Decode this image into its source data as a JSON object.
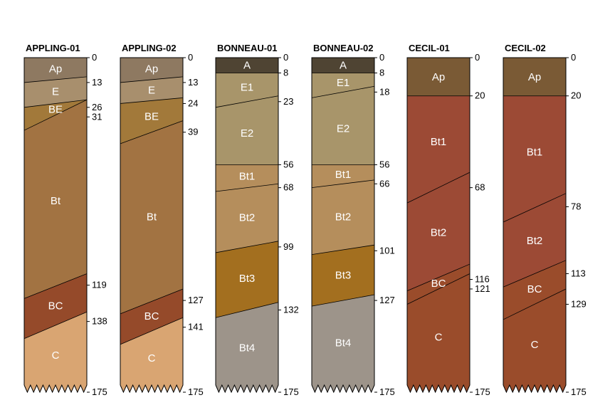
{
  "chart_data": {
    "type": "soil-profile-sketch",
    "depth_unit": "cm",
    "max_depth": 175,
    "bottom_depth_label": "175",
    "profiles": [
      {
        "name": "APPLING-01",
        "horizons": [
          {
            "name": "Ap",
            "top": 0,
            "bottom": 13,
            "color": "#8e7961",
            "label_color": "#ffffff",
            "bottom_right": 10
          },
          {
            "name": "E",
            "top": 13,
            "bottom": 26,
            "color": "#a88f6d",
            "label_color": "#ffffff",
            "bottom_right": 22
          },
          {
            "name": "BE",
            "top": 26,
            "bottom": 31,
            "color": "#a2793a",
            "label_color": "#ffffff",
            "bottom_left": 38,
            "bottom_right": 22
          },
          {
            "name": "Bt",
            "top": 31,
            "bottom": 119,
            "color": "#a27342",
            "label_color": "#ffffff",
            "bottom_left": 126,
            "bottom_right": 113
          },
          {
            "name": "BC",
            "top": 119,
            "bottom": 138,
            "color": "#954a2a",
            "label_color": "#ffffff",
            "bottom_left": 147,
            "bottom_right": 133
          },
          {
            "name": "C",
            "top": 138,
            "bottom": 175,
            "color": "#d9a572",
            "label_color": "#000000"
          }
        ],
        "depth_labels": [
          "0",
          "13",
          "26",
          "31",
          "119",
          "138",
          "175"
        ]
      },
      {
        "name": "APPLING-02",
        "horizons": [
          {
            "name": "Ap",
            "top": 0,
            "bottom": 13,
            "color": "#8e7961",
            "label_color": "#ffffff",
            "bottom_right": 10
          },
          {
            "name": "E",
            "top": 13,
            "bottom": 24,
            "color": "#a88f6d",
            "label_color": "#ffffff",
            "bottom_right": 21
          },
          {
            "name": "BE",
            "top": 24,
            "bottom": 39,
            "color": "#a2793a",
            "label_color": "#ffffff",
            "bottom_left": 45,
            "bottom_right": 33
          },
          {
            "name": "Bt",
            "top": 39,
            "bottom": 127,
            "color": "#a27342",
            "label_color": "#ffffff",
            "bottom_left": 134,
            "bottom_right": 121
          },
          {
            "name": "BC",
            "top": 127,
            "bottom": 141,
            "color": "#954a2a",
            "label_color": "#ffffff",
            "bottom_left": 150,
            "bottom_right": 136
          },
          {
            "name": "C",
            "top": 141,
            "bottom": 175,
            "color": "#d9a572",
            "label_color": "#000000"
          }
        ],
        "depth_labels": [
          "0",
          "13",
          "24",
          "39",
          "127",
          "141",
          "175"
        ]
      },
      {
        "name": "BONNEAU-01",
        "horizons": [
          {
            "name": "A",
            "top": 0,
            "bottom": 8,
            "color": "#4f4433",
            "label_color": "#ffffff"
          },
          {
            "name": "E1",
            "top": 8,
            "bottom": 23,
            "color": "#a8956a",
            "label_color": "#ffffff",
            "bottom_left": 26,
            "bottom_right": 20
          },
          {
            "name": "E2",
            "top": 23,
            "bottom": 56,
            "color": "#a8956a",
            "label_color": "#ffffff"
          },
          {
            "name": "Bt1",
            "top": 56,
            "bottom": 68,
            "color": "#b58e5c",
            "label_color": "#ffffff",
            "bottom_left": 70,
            "bottom_right": 66
          },
          {
            "name": "Bt2",
            "top": 68,
            "bottom": 99,
            "color": "#b58e5c",
            "label_color": "#ffffff",
            "bottom_left": 102,
            "bottom_right": 96
          },
          {
            "name": "Bt3",
            "top": 99,
            "bottom": 132,
            "color": "#a36f1f",
            "label_color": "#ffffff",
            "bottom_left": 136,
            "bottom_right": 128
          },
          {
            "name": "Bt4",
            "top": 132,
            "bottom": 175,
            "color": "#9d948a",
            "label_color": "#ffffff"
          }
        ],
        "depth_labels": [
          "0",
          "8",
          "23",
          "56",
          "68",
          "99",
          "132",
          "175"
        ]
      },
      {
        "name": "BONNEAU-02",
        "horizons": [
          {
            "name": "A",
            "top": 0,
            "bottom": 8,
            "color": "#4f4433",
            "label_color": "#ffffff"
          },
          {
            "name": "E1",
            "top": 8,
            "bottom": 18,
            "color": "#a8956a",
            "label_color": "#ffffff",
            "bottom_left": 21,
            "bottom_right": 15
          },
          {
            "name": "E2",
            "top": 18,
            "bottom": 56,
            "color": "#a8956a",
            "label_color": "#ffffff"
          },
          {
            "name": "Bt1",
            "top": 56,
            "bottom": 66,
            "color": "#b58e5c",
            "label_color": "#ffffff",
            "bottom_left": 68,
            "bottom_right": 64
          },
          {
            "name": "Bt2",
            "top": 66,
            "bottom": 101,
            "color": "#b58e5c",
            "label_color": "#ffffff",
            "bottom_left": 103,
            "bottom_right": 98
          },
          {
            "name": "Bt3",
            "top": 101,
            "bottom": 127,
            "color": "#a36f1f",
            "label_color": "#ffffff",
            "bottom_left": 130,
            "bottom_right": 124
          },
          {
            "name": "Bt4",
            "top": 127,
            "bottom": 175,
            "color": "#9d948a",
            "label_color": "#ffffff"
          }
        ],
        "depth_labels": [
          "0",
          "8",
          "18",
          "56",
          "66",
          "101",
          "127",
          "175"
        ]
      },
      {
        "name": "CECIL-01",
        "horizons": [
          {
            "name": "Ap",
            "top": 0,
            "bottom": 20,
            "color": "#7a5a35",
            "label_color": "#ffffff"
          },
          {
            "name": "Bt1",
            "top": 20,
            "bottom": 68,
            "color": "#9c4a35",
            "label_color": "#ffffff",
            "bottom_left": 76,
            "bottom_right": 60
          },
          {
            "name": "Bt2",
            "top": 68,
            "bottom": 116,
            "color": "#9c4a35",
            "label_color": "#ffffff",
            "bottom_left": 122,
            "bottom_right": 108
          },
          {
            "name": "BC",
            "top": 116,
            "bottom": 121,
            "color": "#9a4c2b",
            "label_color": "#ffffff",
            "bottom_left": 129,
            "bottom_right": 113
          },
          {
            "name": "C",
            "top": 121,
            "bottom": 175,
            "color": "#9a4c2b",
            "label_color": "#ffffff"
          }
        ],
        "depth_labels": [
          "0",
          "20",
          "68",
          "116",
          "121",
          "175"
        ]
      },
      {
        "name": "CECIL-02",
        "horizons": [
          {
            "name": "Ap",
            "top": 0,
            "bottom": 20,
            "color": "#7a5a35",
            "label_color": "#ffffff"
          },
          {
            "name": "Bt1",
            "top": 20,
            "bottom": 78,
            "color": "#9c4a35",
            "label_color": "#ffffff",
            "bottom_left": 86,
            "bottom_right": 71
          },
          {
            "name": "Bt2",
            "top": 78,
            "bottom": 113,
            "color": "#9c4a35",
            "label_color": "#ffffff",
            "bottom_left": 120,
            "bottom_right": 106
          },
          {
            "name": "BC",
            "top": 113,
            "bottom": 129,
            "color": "#9a4c2b",
            "label_color": "#ffffff",
            "bottom_left": 137,
            "bottom_right": 121
          },
          {
            "name": "C",
            "top": 129,
            "bottom": 175,
            "color": "#9a4c2b",
            "label_color": "#ffffff"
          }
        ],
        "depth_labels": [
          "0",
          "20",
          "78",
          "113",
          "129",
          "175"
        ]
      }
    ]
  }
}
